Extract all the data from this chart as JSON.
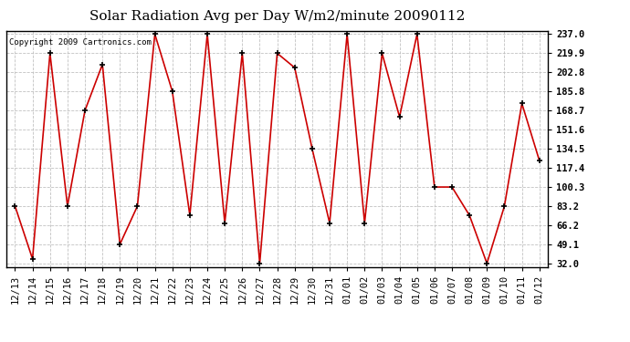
{
  "title": "Solar Radiation Avg per Day W/m2/minute 20090112",
  "copyright": "Copyright 2009 Cartronics.com",
  "labels": [
    "12/13",
    "12/14",
    "12/15",
    "12/16",
    "12/17",
    "12/18",
    "12/19",
    "12/20",
    "12/21",
    "12/22",
    "12/23",
    "12/24",
    "12/25",
    "12/26",
    "12/27",
    "12/28",
    "12/29",
    "12/30",
    "12/31",
    "01/01",
    "01/02",
    "01/03",
    "01/04",
    "01/05",
    "01/06",
    "01/07",
    "01/08",
    "01/09",
    "01/10",
    "01/11",
    "01/12"
  ],
  "values": [
    83.2,
    36.0,
    219.9,
    83.2,
    168.7,
    210.0,
    49.1,
    83.2,
    237.0,
    185.8,
    75.0,
    237.0,
    68.0,
    219.9,
    32.0,
    219.9,
    207.0,
    134.5,
    68.0,
    237.0,
    68.0,
    219.9,
    163.0,
    237.0,
    100.3,
    100.3,
    75.0,
    32.0,
    83.2,
    175.0,
    124.0
  ],
  "line_color": "#cc0000",
  "marker_color": "#000000",
  "bg_color": "#ffffff",
  "grid_color": "#bbbbbb",
  "yticks": [
    32.0,
    49.1,
    66.2,
    83.2,
    100.3,
    117.4,
    134.5,
    151.6,
    168.7,
    185.8,
    202.8,
    219.9,
    237.0
  ],
  "ymin": 32.0,
  "ymax": 237.0,
  "title_fontsize": 11,
  "tick_fontsize": 7.5,
  "copyright_fontsize": 6.5
}
